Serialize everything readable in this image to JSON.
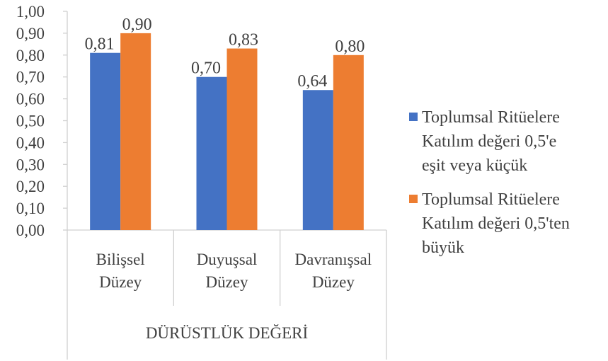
{
  "chart_data": {
    "type": "bar",
    "categories": [
      [
        "Bilişsel",
        "Düzey"
      ],
      [
        "Duyuşsal",
        "Düzey"
      ],
      [
        "Davranışsal",
        "Düzey"
      ]
    ],
    "group_label": "DÜRÜSTLÜK DEĞERİ",
    "series": [
      {
        "name": [
          "Toplumsal Ritüelere",
          "Katılım değeri 0,5'e",
          "eşit veya küçük"
        ],
        "color": "#4472C4",
        "values": [
          0.81,
          0.7,
          0.64
        ],
        "labels": [
          "0,81",
          "0,70",
          "0,64"
        ]
      },
      {
        "name": [
          "Toplumsal Ritüelere",
          "Katılım değeri 0,5'ten",
          "büyük"
        ],
        "color": "#ED7D31",
        "values": [
          0.9,
          0.83,
          0.8
        ],
        "labels": [
          "0,90",
          "0,83",
          "0,80"
        ]
      }
    ],
    "ylim": [
      0,
      1.0
    ],
    "yticks": [
      "0,00",
      "0,10",
      "0,20",
      "0,30",
      "0,40",
      "0,50",
      "0,60",
      "0,70",
      "0,80",
      "0,90",
      "1,00"
    ],
    "grid": false,
    "legend_position": "right"
  }
}
